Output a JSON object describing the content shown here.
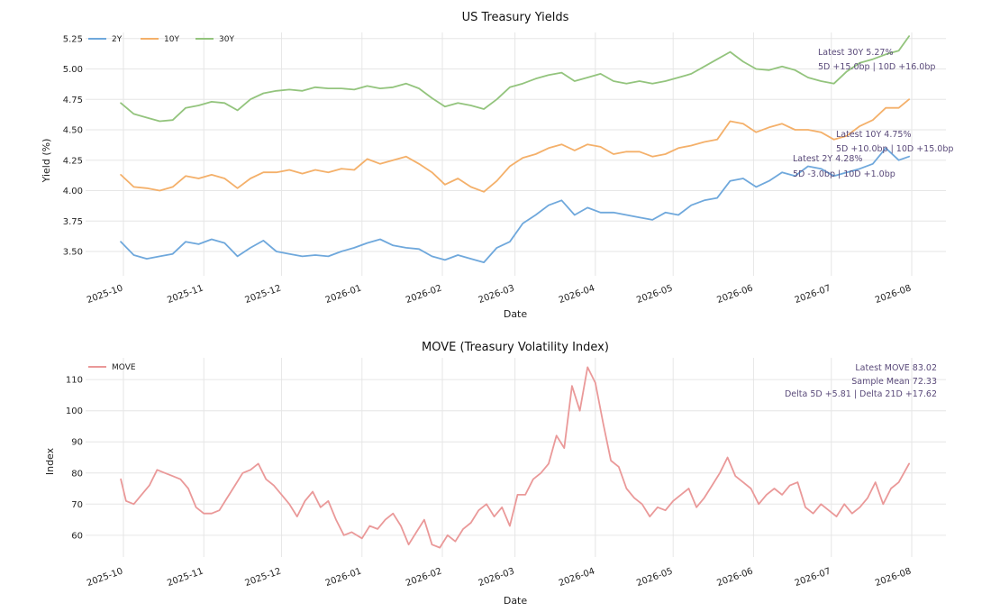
{
  "chart_data": [
    {
      "type": "line",
      "title": "US Treasury Yields",
      "xlabel": "Date",
      "ylabel": "Yield (%)",
      "x_range": [
        "2025-09-30",
        "2026-07-31"
      ],
      "ylim": [
        3.3,
        5.3
      ],
      "yticks": [
        3.5,
        3.75,
        4.0,
        4.25,
        4.5,
        4.75,
        5.0,
        5.25
      ],
      "ytick_labels": [
        "3.50",
        "3.75",
        "4.00",
        "4.25",
        "4.50",
        "4.75",
        "5.00",
        "5.25"
      ],
      "xtick_labels": [
        "2025-10",
        "2025-11",
        "2025-12",
        "2026-01",
        "2026-02",
        "2026-03",
        "2026-04",
        "2026-05",
        "2026-06",
        "2026-07",
        "2026-08"
      ],
      "xtick_dates": [
        "2025-10-01",
        "2025-11-01",
        "2025-12-01",
        "2026-01-01",
        "2026-02-01",
        "2026-03-01",
        "2026-04-01",
        "2026-05-01",
        "2026-06-01",
        "2026-07-01",
        "2026-08-01"
      ],
      "grid": true,
      "legend": "top-left",
      "x": [
        "2025-09-30",
        "2025-10-05",
        "2025-10-10",
        "2025-10-15",
        "2025-10-20",
        "2025-10-25",
        "2025-10-30",
        "2025-11-04",
        "2025-11-09",
        "2025-11-14",
        "2025-11-19",
        "2025-11-24",
        "2025-11-29",
        "2025-12-04",
        "2025-12-09",
        "2025-12-14",
        "2025-12-19",
        "2025-12-24",
        "2025-12-29",
        "2026-01-03",
        "2026-01-08",
        "2026-01-13",
        "2026-01-18",
        "2026-01-23",
        "2026-01-28",
        "2026-02-02",
        "2026-02-07",
        "2026-02-12",
        "2026-02-17",
        "2026-02-22",
        "2026-02-27",
        "2026-03-04",
        "2026-03-09",
        "2026-03-14",
        "2026-03-19",
        "2026-03-24",
        "2026-03-29",
        "2026-04-03",
        "2026-04-08",
        "2026-04-13",
        "2026-04-18",
        "2026-04-23",
        "2026-04-28",
        "2026-05-03",
        "2026-05-08",
        "2026-05-13",
        "2026-05-18",
        "2026-05-23",
        "2026-05-28",
        "2026-06-02",
        "2026-06-07",
        "2026-06-12",
        "2026-06-17",
        "2026-06-22",
        "2026-06-27",
        "2026-07-02",
        "2026-07-07",
        "2026-07-12",
        "2026-07-17",
        "2026-07-22",
        "2026-07-27",
        "2026-07-31"
      ],
      "series": [
        {
          "name": "2Y",
          "color": "#6fa8dc",
          "values": [
            3.58,
            3.47,
            3.44,
            3.46,
            3.48,
            3.58,
            3.56,
            3.6,
            3.57,
            3.46,
            3.53,
            3.59,
            3.5,
            3.48,
            3.46,
            3.47,
            3.46,
            3.5,
            3.53,
            3.57,
            3.6,
            3.55,
            3.53,
            3.52,
            3.46,
            3.43,
            3.47,
            3.44,
            3.41,
            3.53,
            3.58,
            3.73,
            3.8,
            3.88,
            3.92,
            3.8,
            3.86,
            3.82,
            3.82,
            3.8,
            3.78,
            3.76,
            3.82,
            3.8,
            3.88,
            3.92,
            3.94,
            4.08,
            4.1,
            4.03,
            4.08,
            4.15,
            4.12,
            4.2,
            4.18,
            4.12,
            4.15,
            4.18,
            4.22,
            4.35,
            4.25,
            4.28
          ]
        },
        {
          "name": "10Y",
          "color": "#f4b06a",
          "values": [
            4.13,
            4.03,
            4.02,
            4.0,
            4.03,
            4.12,
            4.1,
            4.13,
            4.1,
            4.02,
            4.1,
            4.15,
            4.15,
            4.17,
            4.14,
            4.17,
            4.15,
            4.18,
            4.17,
            4.26,
            4.22,
            4.25,
            4.28,
            4.22,
            4.15,
            4.05,
            4.1,
            4.03,
            3.99,
            4.08,
            4.2,
            4.27,
            4.3,
            4.35,
            4.38,
            4.33,
            4.38,
            4.36,
            4.3,
            4.32,
            4.32,
            4.28,
            4.3,
            4.35,
            4.37,
            4.4,
            4.42,
            4.57,
            4.55,
            4.48,
            4.52,
            4.55,
            4.5,
            4.5,
            4.48,
            4.42,
            4.45,
            4.53,
            4.58,
            4.68,
            4.68,
            4.75
          ]
        },
        {
          "name": "30Y",
          "color": "#93c47d",
          "values": [
            4.72,
            4.63,
            4.6,
            4.57,
            4.58,
            4.68,
            4.7,
            4.73,
            4.72,
            4.66,
            4.75,
            4.8,
            4.82,
            4.83,
            4.82,
            4.85,
            4.84,
            4.84,
            4.83,
            4.86,
            4.84,
            4.85,
            4.88,
            4.84,
            4.76,
            4.69,
            4.72,
            4.7,
            4.67,
            4.75,
            4.85,
            4.88,
            4.92,
            4.95,
            4.97,
            4.9,
            4.93,
            4.96,
            4.9,
            4.88,
            4.9,
            4.88,
            4.9,
            4.93,
            4.96,
            5.02,
            5.08,
            5.14,
            5.06,
            5.0,
            4.99,
            5.02,
            4.99,
            4.93,
            4.9,
            4.88,
            4.98,
            5.05,
            5.08,
            5.12,
            5.15,
            5.27
          ]
        }
      ],
      "annotations": [
        {
          "line1": "Latest 30Y 5.27%",
          "line2": "5D +15.0bp | 10D +16.0bp"
        },
        {
          "line1": "Latest 10Y 4.75%",
          "line2": "5D +10.0bp | 10D +15.0bp"
        },
        {
          "line1": "Latest 2Y 4.28%",
          "line2": "5D -3.0bp | 10D +1.0bp"
        }
      ]
    },
    {
      "type": "line",
      "title": "MOVE (Treasury Volatility Index)",
      "xlabel": "Date",
      "ylabel": "Index",
      "x_range": [
        "2025-09-30",
        "2026-07-31"
      ],
      "ylim": [
        53,
        117
      ],
      "yticks": [
        60,
        70,
        80,
        90,
        100,
        110
      ],
      "ytick_labels": [
        "60",
        "70",
        "80",
        "90",
        "100",
        "110"
      ],
      "xtick_labels": [
        "2025-10",
        "2025-11",
        "2025-12",
        "2026-01",
        "2026-02",
        "2026-03",
        "2026-04",
        "2026-05",
        "2026-06",
        "2026-07",
        "2026-08"
      ],
      "xtick_dates": [
        "2025-10-01",
        "2025-11-01",
        "2025-12-01",
        "2026-01-01",
        "2026-02-01",
        "2026-03-01",
        "2026-04-01",
        "2026-05-01",
        "2026-06-01",
        "2026-07-01",
        "2026-08-01"
      ],
      "grid": true,
      "legend": "top-left",
      "x": [
        "2025-09-30",
        "2025-10-02",
        "2025-10-05",
        "2025-10-08",
        "2025-10-11",
        "2025-10-14",
        "2025-10-17",
        "2025-10-20",
        "2025-10-23",
        "2025-10-26",
        "2025-10-29",
        "2025-11-01",
        "2025-11-04",
        "2025-11-07",
        "2025-11-10",
        "2025-11-13",
        "2025-11-16",
        "2025-11-19",
        "2025-11-22",
        "2025-11-25",
        "2025-11-28",
        "2025-12-01",
        "2025-12-04",
        "2025-12-07",
        "2025-12-10",
        "2025-12-13",
        "2025-12-16",
        "2025-12-19",
        "2025-12-22",
        "2025-12-25",
        "2025-12-28",
        "2026-01-01",
        "2026-01-04",
        "2026-01-07",
        "2026-01-10",
        "2026-01-13",
        "2026-01-16",
        "2026-01-19",
        "2026-01-22",
        "2026-01-25",
        "2026-01-28",
        "2026-01-31",
        "2026-02-03",
        "2026-02-06",
        "2026-02-09",
        "2026-02-12",
        "2026-02-15",
        "2026-02-18",
        "2026-02-21",
        "2026-02-24",
        "2026-02-27",
        "2026-03-02",
        "2026-03-05",
        "2026-03-08",
        "2026-03-11",
        "2026-03-14",
        "2026-03-17",
        "2026-03-20",
        "2026-03-23",
        "2026-03-26",
        "2026-03-29",
        "2026-04-01",
        "2026-04-04",
        "2026-04-07",
        "2026-04-10",
        "2026-04-13",
        "2026-04-16",
        "2026-04-19",
        "2026-04-22",
        "2026-04-25",
        "2026-04-28",
        "2026-05-01",
        "2026-05-04",
        "2026-05-07",
        "2026-05-10",
        "2026-05-13",
        "2026-05-16",
        "2026-05-19",
        "2026-05-22",
        "2026-05-25",
        "2026-05-28",
        "2026-05-31",
        "2026-06-03",
        "2026-06-06",
        "2026-06-09",
        "2026-06-12",
        "2026-06-15",
        "2026-06-18",
        "2026-06-21",
        "2026-06-24",
        "2026-06-27",
        "2026-06-30",
        "2026-07-03",
        "2026-07-06",
        "2026-07-09",
        "2026-07-12",
        "2026-07-15",
        "2026-07-18",
        "2026-07-21",
        "2026-07-24",
        "2026-07-27",
        "2026-07-31"
      ],
      "series": [
        {
          "name": "MOVE",
          "color": "#ea9999",
          "values": [
            78,
            71,
            70,
            73,
            76,
            81,
            80,
            79,
            78,
            75,
            69,
            67,
            67,
            68,
            72,
            76,
            80,
            81,
            83,
            78,
            76,
            73,
            70,
            66,
            71,
            74,
            69,
            71,
            65,
            60,
            61,
            59,
            63,
            62,
            65,
            67,
            63,
            57,
            61,
            65,
            57,
            56,
            60,
            58,
            62,
            64,
            68,
            70,
            66,
            69,
            63,
            73,
            73,
            78,
            80,
            83,
            92,
            88,
            108,
            100,
            114,
            109,
            96,
            84,
            82,
            75,
            72,
            70,
            66,
            69,
            68,
            71,
            73,
            75,
            69,
            72,
            76,
            80,
            85,
            79,
            77,
            75,
            70,
            73,
            75,
            73,
            76,
            77,
            69,
            67,
            70,
            68,
            66,
            70,
            67,
            69,
            72,
            77,
            70,
            75,
            77,
            83
          ]
        }
      ],
      "annotations": [
        {
          "line1": "Latest MOVE  83.02"
        },
        {
          "line1": "Sample Mean  72.33"
        },
        {
          "line1": "Delta 5D  +5.81  |  Delta 21D  +17.62"
        }
      ]
    }
  ]
}
